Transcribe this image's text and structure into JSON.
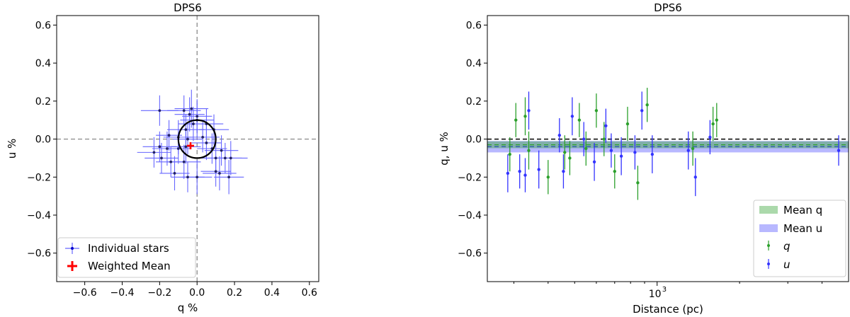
{
  "chart_data": [
    {
      "type": "scatter",
      "title": "DPS6",
      "xlabel": "q %",
      "ylabel": "u %",
      "xlim": [
        -0.75,
        0.65
      ],
      "ylim": [
        -0.75,
        0.65
      ],
      "xticks": [
        -0.6,
        -0.4,
        -0.2,
        0.0,
        0.2,
        0.4,
        0.6
      ],
      "yticks": [
        -0.6,
        -0.4,
        -0.2,
        0.0,
        0.2,
        0.4,
        0.6
      ],
      "xtick_labels": [
        "−0.6",
        "−0.4",
        "−0.2",
        "0.0",
        "0.2",
        "0.4",
        "0.6"
      ],
      "ytick_labels": [
        "−0.6",
        "−0.4",
        "−0.2",
        "0.0",
        "0.2",
        "0.4",
        "0.6"
      ],
      "reference_lines": {
        "x": 0.0,
        "y": 0.0,
        "style": "dashed",
        "color": "#808080"
      },
      "circle": {
        "center": [
          0.0,
          0.0
        ],
        "radius": 0.1,
        "color": "#000000"
      },
      "legend_position": "lower-left",
      "series": [
        {
          "name": "Individual stars",
          "color": "#0000cc",
          "errorbar_color": "#6666ff",
          "points": [
            {
              "x": -0.2,
              "y": 0.15,
              "xerr": 0.1,
              "yerr": 0.08
            },
            {
              "x": -0.07,
              "y": 0.15,
              "xerr": 0.09,
              "yerr": 0.08
            },
            {
              "x": -0.04,
              "y": 0.13,
              "xerr": 0.08,
              "yerr": 0.09
            },
            {
              "x": -0.06,
              "y": 0.05,
              "xerr": 0.1,
              "yerr": 0.08
            },
            {
              "x": -0.02,
              "y": 0.08,
              "xerr": 0.08,
              "yerr": 0.09
            },
            {
              "x": -0.03,
              "y": 0.16,
              "xerr": 0.09,
              "yerr": 0.1
            },
            {
              "x": 0.0,
              "y": 0.12,
              "xerr": 0.08,
              "yerr": 0.09
            },
            {
              "x": 0.0,
              "y": 0.1,
              "xerr": 0.09,
              "yerr": 0.09
            },
            {
              "x": 0.05,
              "y": 0.08,
              "xerr": 0.09,
              "yerr": 0.08
            },
            {
              "x": 0.09,
              "y": 0.05,
              "xerr": 0.08,
              "yerr": 0.08
            },
            {
              "x": -0.15,
              "y": 0.02,
              "xerr": 0.07,
              "yerr": 0.08
            },
            {
              "x": -0.1,
              "y": 0.01,
              "xerr": 0.08,
              "yerr": 0.09
            },
            {
              "x": -0.05,
              "y": 0.0,
              "xerr": 0.08,
              "yerr": 0.08
            },
            {
              "x": 0.03,
              "y": 0.01,
              "xerr": 0.09,
              "yerr": 0.08
            },
            {
              "x": 0.05,
              "y": -0.02,
              "xerr": 0.08,
              "yerr": 0.09
            },
            {
              "x": -0.2,
              "y": -0.04,
              "xerr": 0.09,
              "yerr": 0.08
            },
            {
              "x": -0.16,
              "y": -0.05,
              "xerr": 0.08,
              "yerr": 0.09
            },
            {
              "x": -0.1,
              "y": -0.05,
              "xerr": 0.07,
              "yerr": 0.08
            },
            {
              "x": -0.06,
              "y": -0.04,
              "xerr": 0.08,
              "yerr": 0.09
            },
            {
              "x": 0.08,
              "y": -0.05,
              "xerr": 0.08,
              "yerr": 0.08
            },
            {
              "x": 0.13,
              "y": -0.06,
              "xerr": 0.09,
              "yerr": 0.08
            },
            {
              "x": -0.23,
              "y": -0.07,
              "xerr": 0.09,
              "yerr": 0.08
            },
            {
              "x": -0.19,
              "y": -0.1,
              "xerr": 0.09,
              "yerr": 0.08
            },
            {
              "x": -0.14,
              "y": -0.12,
              "xerr": 0.08,
              "yerr": 0.08
            },
            {
              "x": -0.07,
              "y": -0.12,
              "xerr": 0.09,
              "yerr": 0.09
            },
            {
              "x": -0.12,
              "y": -0.18,
              "xerr": 0.08,
              "yerr": 0.09
            },
            {
              "x": -0.05,
              "y": -0.2,
              "xerr": 0.09,
              "yerr": 0.08
            },
            {
              "x": 0.0,
              "y": -0.2,
              "xerr": 0.08,
              "yerr": 0.09
            },
            {
              "x": 0.1,
              "y": -0.1,
              "xerr": 0.09,
              "yerr": 0.08
            },
            {
              "x": 0.15,
              "y": -0.1,
              "xerr": 0.09,
              "yerr": 0.08
            },
            {
              "x": 0.18,
              "y": -0.1,
              "xerr": 0.09,
              "yerr": 0.09
            },
            {
              "x": 0.1,
              "y": -0.17,
              "xerr": 0.08,
              "yerr": 0.08
            },
            {
              "x": 0.12,
              "y": -0.18,
              "xerr": 0.09,
              "yerr": 0.09
            },
            {
              "x": 0.17,
              "y": -0.2,
              "xerr": 0.08,
              "yerr": 0.09
            }
          ]
        },
        {
          "name": "Weighted Mean",
          "color": "#ff0000",
          "marker": "plus",
          "points": [
            {
              "x": -0.035,
              "y": -0.035
            }
          ]
        }
      ]
    },
    {
      "type": "scatter",
      "title": "DPS6",
      "xlabel": "Distance (pc)",
      "ylabel": "q, u %",
      "xscale": "log",
      "xlim": [
        240,
        5000
      ],
      "ylim": [
        -0.75,
        0.65
      ],
      "xticks": [
        1000
      ],
      "xtick_labels": [
        "10"
      ],
      "xtick_exponent": "3",
      "xminor_ticks": [
        300,
        400,
        500,
        600,
        700,
        800,
        900,
        2000,
        3000,
        4000
      ],
      "yticks": [
        -0.6,
        -0.4,
        -0.2,
        0.0,
        0.2,
        0.4,
        0.6
      ],
      "ytick_labels": [
        "−0.6",
        "−0.4",
        "−0.2",
        "0.0",
        "0.2",
        "0.4",
        "0.6"
      ],
      "reference_lines": {
        "y": 0.0,
        "style": "dashed",
        "color": "#000000"
      },
      "legend_position": "lower-right",
      "bands": [
        {
          "name": "Mean q",
          "center": -0.03,
          "halfwidth": 0.018,
          "color": "#2ca02c",
          "alpha": 0.4
        },
        {
          "name": "Mean u",
          "center": -0.04,
          "halfwidth": 0.03,
          "color": "#3333ff",
          "alpha": 0.35
        }
      ],
      "series": [
        {
          "name": "q",
          "color": "#2ca02c",
          "points": [
            {
              "x": 290,
              "y": -0.08,
              "yerr": 0.09
            },
            {
              "x": 305,
              "y": 0.1,
              "yerr": 0.09
            },
            {
              "x": 330,
              "y": 0.12,
              "yerr": 0.1
            },
            {
              "x": 340,
              "y": -0.06,
              "yerr": 0.1
            },
            {
              "x": 400,
              "y": -0.2,
              "yerr": 0.09
            },
            {
              "x": 460,
              "y": -0.07,
              "yerr": 0.09
            },
            {
              "x": 480,
              "y": -0.1,
              "yerr": 0.09
            },
            {
              "x": 520,
              "y": 0.1,
              "yerr": 0.09
            },
            {
              "x": 550,
              "y": -0.05,
              "yerr": 0.09
            },
            {
              "x": 600,
              "y": 0.15,
              "yerr": 0.09
            },
            {
              "x": 640,
              "y": 0.0,
              "yerr": 0.09
            },
            {
              "x": 700,
              "y": -0.17,
              "yerr": 0.09
            },
            {
              "x": 780,
              "y": 0.08,
              "yerr": 0.09
            },
            {
              "x": 850,
              "y": -0.23,
              "yerr": 0.09
            },
            {
              "x": 920,
              "y": 0.18,
              "yerr": 0.09
            },
            {
              "x": 1350,
              "y": -0.05,
              "yerr": 0.09
            },
            {
              "x": 1600,
              "y": 0.08,
              "yerr": 0.09
            },
            {
              "x": 1650,
              "y": 0.1,
              "yerr": 0.09
            }
          ]
        },
        {
          "name": "u",
          "color": "#3333ff",
          "points": [
            {
              "x": 285,
              "y": -0.18,
              "yerr": 0.1
            },
            {
              "x": 315,
              "y": -0.17,
              "yerr": 0.09
            },
            {
              "x": 330,
              "y": -0.19,
              "yerr": 0.09
            },
            {
              "x": 340,
              "y": 0.15,
              "yerr": 0.1
            },
            {
              "x": 370,
              "y": -0.16,
              "yerr": 0.1
            },
            {
              "x": 440,
              "y": 0.02,
              "yerr": 0.09
            },
            {
              "x": 455,
              "y": -0.17,
              "yerr": 0.09
            },
            {
              "x": 490,
              "y": 0.12,
              "yerr": 0.1
            },
            {
              "x": 540,
              "y": 0.0,
              "yerr": 0.09
            },
            {
              "x": 590,
              "y": -0.12,
              "yerr": 0.1
            },
            {
              "x": 650,
              "y": 0.07,
              "yerr": 0.09
            },
            {
              "x": 680,
              "y": -0.06,
              "yerr": 0.09
            },
            {
              "x": 740,
              "y": -0.09,
              "yerr": 0.1
            },
            {
              "x": 830,
              "y": -0.07,
              "yerr": 0.09
            },
            {
              "x": 880,
              "y": 0.15,
              "yerr": 0.1
            },
            {
              "x": 960,
              "y": -0.08,
              "yerr": 0.1
            },
            {
              "x": 1300,
              "y": -0.06,
              "yerr": 0.1
            },
            {
              "x": 1380,
              "y": -0.2,
              "yerr": 0.1
            },
            {
              "x": 1560,
              "y": 0.01,
              "yerr": 0.09
            },
            {
              "x": 4600,
              "y": -0.06,
              "yerr": 0.08
            }
          ]
        }
      ]
    }
  ]
}
